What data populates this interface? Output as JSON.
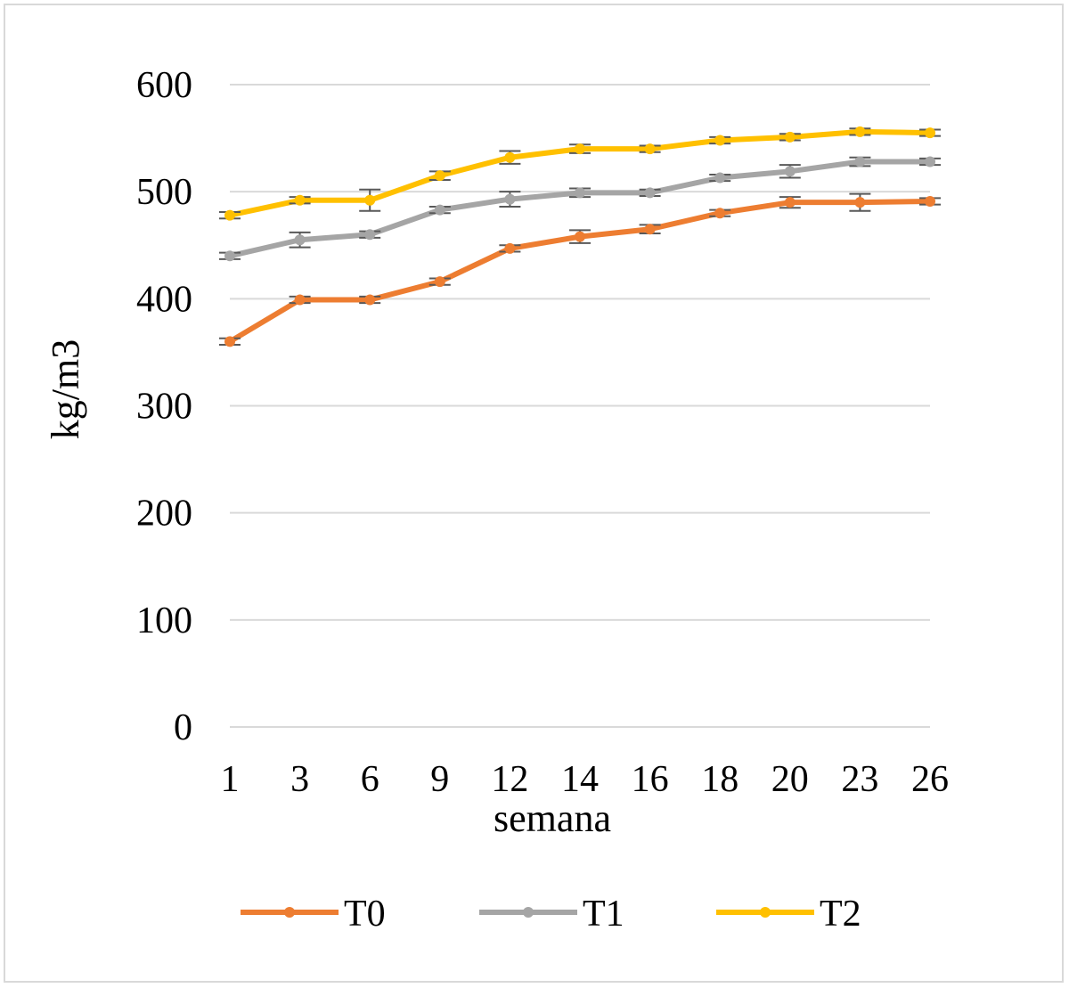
{
  "chart_data": {
    "type": "line",
    "xlabel": "semana",
    "ylabel": "kg/m3",
    "categories": [
      "1",
      "3",
      "6",
      "9",
      "12",
      "14",
      "16",
      "18",
      "20",
      "23",
      "26"
    ],
    "ylim": [
      0,
      600
    ],
    "yticks": [
      0,
      100,
      200,
      300,
      400,
      500,
      600
    ],
    "grid": true,
    "legend_position": "bottom",
    "series": [
      {
        "name": "T0",
        "color": "#ED7D31",
        "values": [
          360,
          399,
          399,
          416,
          447,
          458,
          465,
          480,
          490,
          490,
          491
        ],
        "errors": [
          3,
          3,
          3,
          3,
          3,
          6,
          4,
          3,
          5,
          8,
          3
        ]
      },
      {
        "name": "T1",
        "color": "#A5A5A5",
        "values": [
          440,
          455,
          460,
          483,
          493,
          499,
          499,
          513,
          519,
          528,
          528
        ],
        "errors": [
          3,
          7,
          3,
          3,
          7,
          4,
          3,
          3,
          6,
          4,
          3
        ]
      },
      {
        "name": "T2",
        "color": "#FFC000",
        "values": [
          478,
          492,
          492,
          515,
          532,
          540,
          540,
          548,
          551,
          556,
          555
        ],
        "errors": [
          3,
          3,
          10,
          4,
          6,
          4,
          3,
          3,
          3,
          3,
          3
        ]
      }
    ]
  }
}
